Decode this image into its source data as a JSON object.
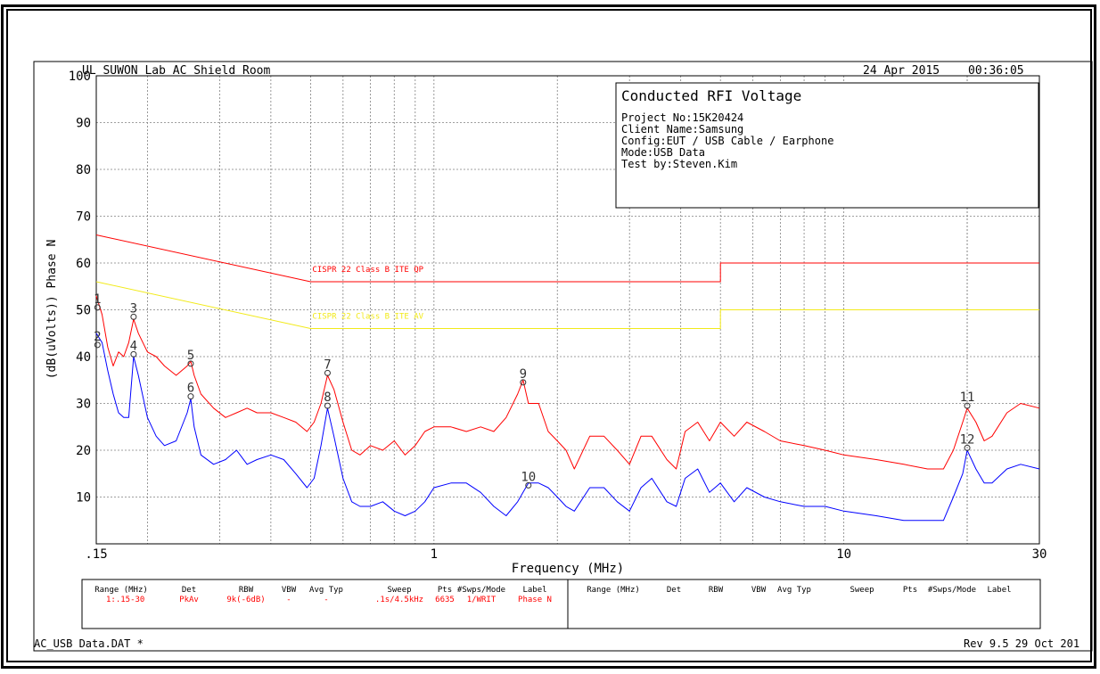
{
  "header": {
    "lab": "UL SUWON Lab AC Shield Room",
    "date": "24 Apr 2015",
    "time": "00:36:05"
  },
  "info_box": {
    "title": "Conducted RFI Voltage",
    "lines": [
      "Project No:15K20424",
      "Client Name:Samsung",
      "Config:EUT / USB Cable / Earphone",
      "Mode:USB Data",
      "Test by:Steven.Kim"
    ]
  },
  "footer": {
    "file": "AC_USB Data.DAT *",
    "revision": "Rev 9.5 29 Oct 201"
  },
  "settings_table": {
    "headers": [
      "Range (MHz)",
      "Det",
      "RBW",
      "VBW",
      "Avg Typ",
      "Sweep",
      "Pts",
      "#Swps/Mode",
      "Label"
    ],
    "row": [
      "1:.15-30",
      "PkAv",
      "9k(-6dB)",
      "-",
      "-",
      ".1s/4.5kHz",
      "6635",
      "1/WRIT",
      "Phase N"
    ]
  },
  "colors": {
    "peak_trace": "#ff0000",
    "average_trace": "#0000ff",
    "qp_limit": "#ff0000",
    "av_limit": "#f2ea1a",
    "grid": "#808080"
  },
  "chart_data": {
    "type": "line",
    "xlabel": "Frequency (MHz)",
    "ylabel": "(dB(uVolts)) Phase N",
    "x_scale": "log",
    "xlim": [
      0.15,
      30
    ],
    "ylim": [
      0,
      100
    ],
    "x_tick_labels": [
      ".15",
      "1",
      "10",
      "30"
    ],
    "y_tick_labels": [
      "10",
      "20",
      "30",
      "40",
      "50",
      "60",
      "70",
      "80",
      "90",
      "100"
    ],
    "grid": true,
    "limit_lines": [
      {
        "label": "CISPR 22 Class B ITE QP",
        "points": [
          [
            0.15,
            66
          ],
          [
            0.5,
            56
          ],
          [
            5,
            56
          ],
          [
            5,
            60
          ],
          [
            30,
            60
          ]
        ]
      },
      {
        "label": "CISPR 22 Class B ITE AV",
        "points": [
          [
            0.15,
            56
          ],
          [
            0.5,
            46
          ],
          [
            5,
            46
          ],
          [
            5,
            50
          ],
          [
            30,
            50
          ]
        ]
      }
    ],
    "series": [
      {
        "points": [
          [
            0.15,
            53
          ],
          [
            0.155,
            49
          ],
          [
            0.16,
            42
          ],
          [
            0.165,
            38
          ],
          [
            0.17,
            41
          ],
          [
            0.175,
            40
          ],
          [
            0.18,
            43
          ],
          [
            0.185,
            48
          ],
          [
            0.19,
            45
          ],
          [
            0.2,
            41
          ],
          [
            0.21,
            40
          ],
          [
            0.22,
            38
          ],
          [
            0.235,
            36
          ],
          [
            0.25,
            38
          ],
          [
            0.255,
            39
          ],
          [
            0.26,
            36
          ],
          [
            0.27,
            32
          ],
          [
            0.29,
            29
          ],
          [
            0.31,
            27
          ],
          [
            0.33,
            28
          ],
          [
            0.35,
            29
          ],
          [
            0.37,
            28
          ],
          [
            0.4,
            28
          ],
          [
            0.43,
            27
          ],
          [
            0.46,
            26
          ],
          [
            0.49,
            24
          ],
          [
            0.51,
            26
          ],
          [
            0.53,
            30
          ],
          [
            0.55,
            36
          ],
          [
            0.57,
            33
          ],
          [
            0.6,
            26
          ],
          [
            0.63,
            20
          ],
          [
            0.66,
            19
          ],
          [
            0.7,
            21
          ],
          [
            0.75,
            20
          ],
          [
            0.8,
            22
          ],
          [
            0.85,
            19
          ],
          [
            0.9,
            21
          ],
          [
            0.95,
            24
          ],
          [
            1.0,
            25
          ],
          [
            1.1,
            25
          ],
          [
            1.2,
            24
          ],
          [
            1.3,
            25
          ],
          [
            1.4,
            24
          ],
          [
            1.5,
            27
          ],
          [
            1.6,
            32
          ],
          [
            1.65,
            35
          ],
          [
            1.7,
            30
          ],
          [
            1.8,
            30
          ],
          [
            1.9,
            24
          ],
          [
            2.0,
            22
          ],
          [
            2.1,
            20
          ],
          [
            2.2,
            16
          ],
          [
            2.4,
            23
          ],
          [
            2.6,
            23
          ],
          [
            2.8,
            20
          ],
          [
            3.0,
            17
          ],
          [
            3.2,
            23
          ],
          [
            3.4,
            23
          ],
          [
            3.7,
            18
          ],
          [
            3.9,
            16
          ],
          [
            4.1,
            24
          ],
          [
            4.4,
            26
          ],
          [
            4.7,
            22
          ],
          [
            5.0,
            26
          ],
          [
            5.4,
            23
          ],
          [
            5.8,
            26
          ],
          [
            6.4,
            24
          ],
          [
            7.0,
            22
          ],
          [
            8.0,
            21
          ],
          [
            9.0,
            20
          ],
          [
            10.0,
            19
          ],
          [
            12.0,
            18
          ],
          [
            14.0,
            17
          ],
          [
            16.0,
            16
          ],
          [
            17.5,
            16
          ],
          [
            18.5,
            20
          ],
          [
            19.5,
            26
          ],
          [
            20.0,
            29
          ],
          [
            21.0,
            26
          ],
          [
            22.0,
            22
          ],
          [
            23.0,
            23
          ],
          [
            25.0,
            28
          ],
          [
            27.0,
            30
          ],
          [
            30.0,
            29
          ]
        ]
      },
      {
        "points": [
          [
            0.15,
            45
          ],
          [
            0.155,
            43
          ],
          [
            0.16,
            37
          ],
          [
            0.165,
            32
          ],
          [
            0.17,
            28
          ],
          [
            0.175,
            27
          ],
          [
            0.18,
            27
          ],
          [
            0.185,
            40
          ],
          [
            0.19,
            36
          ],
          [
            0.2,
            27
          ],
          [
            0.21,
            23
          ],
          [
            0.22,
            21
          ],
          [
            0.235,
            22
          ],
          [
            0.25,
            28
          ],
          [
            0.255,
            31
          ],
          [
            0.26,
            25
          ],
          [
            0.27,
            19
          ],
          [
            0.29,
            17
          ],
          [
            0.31,
            18
          ],
          [
            0.33,
            20
          ],
          [
            0.35,
            17
          ],
          [
            0.37,
            18
          ],
          [
            0.4,
            19
          ],
          [
            0.43,
            18
          ],
          [
            0.46,
            15
          ],
          [
            0.49,
            12
          ],
          [
            0.51,
            14
          ],
          [
            0.53,
            21
          ],
          [
            0.55,
            29
          ],
          [
            0.57,
            23
          ],
          [
            0.6,
            14
          ],
          [
            0.63,
            9
          ],
          [
            0.66,
            8
          ],
          [
            0.7,
            8
          ],
          [
            0.75,
            9
          ],
          [
            0.8,
            7
          ],
          [
            0.85,
            6
          ],
          [
            0.9,
            7
          ],
          [
            0.95,
            9
          ],
          [
            1.0,
            12
          ],
          [
            1.1,
            13
          ],
          [
            1.2,
            13
          ],
          [
            1.3,
            11
          ],
          [
            1.4,
            8
          ],
          [
            1.5,
            6
          ],
          [
            1.6,
            9
          ],
          [
            1.7,
            13
          ],
          [
            1.8,
            13
          ],
          [
            1.9,
            12
          ],
          [
            2.0,
            10
          ],
          [
            2.1,
            8
          ],
          [
            2.2,
            7
          ],
          [
            2.4,
            12
          ],
          [
            2.6,
            12
          ],
          [
            2.8,
            9
          ],
          [
            3.0,
            7
          ],
          [
            3.2,
            12
          ],
          [
            3.4,
            14
          ],
          [
            3.7,
            9
          ],
          [
            3.9,
            8
          ],
          [
            4.1,
            14
          ],
          [
            4.4,
            16
          ],
          [
            4.7,
            11
          ],
          [
            5.0,
            13
          ],
          [
            5.4,
            9
          ],
          [
            5.8,
            12
          ],
          [
            6.4,
            10
          ],
          [
            7.0,
            9
          ],
          [
            8.0,
            8
          ],
          [
            9.0,
            8
          ],
          [
            10.0,
            7
          ],
          [
            12.0,
            6
          ],
          [
            14.0,
            5
          ],
          [
            16.0,
            5
          ],
          [
            17.5,
            5
          ],
          [
            18.5,
            10
          ],
          [
            19.5,
            15
          ],
          [
            20.0,
            20
          ],
          [
            21.0,
            16
          ],
          [
            22.0,
            13
          ],
          [
            23.0,
            13
          ],
          [
            25.0,
            16
          ],
          [
            27.0,
            17
          ],
          [
            30.0,
            16
          ]
        ]
      }
    ],
    "markers": [
      {
        "label": "1",
        "x": 0.151,
        "y": 50.5
      },
      {
        "label": "2",
        "x": 0.151,
        "y": 42.5
      },
      {
        "label": "3",
        "x": 0.185,
        "y": 48.5
      },
      {
        "label": "4",
        "x": 0.185,
        "y": 40.5
      },
      {
        "label": "5",
        "x": 0.255,
        "y": 38.5
      },
      {
        "label": "6",
        "x": 0.255,
        "y": 31.5
      },
      {
        "label": "7",
        "x": 0.55,
        "y": 36.5
      },
      {
        "label": "8",
        "x": 0.55,
        "y": 29.5
      },
      {
        "label": "9",
        "x": 1.65,
        "y": 34.5
      },
      {
        "label": "10",
        "x": 1.7,
        "y": 12.5
      },
      {
        "label": "11",
        "x": 20.0,
        "y": 29.5
      },
      {
        "label": "12",
        "x": 20.0,
        "y": 20.5
      }
    ]
  }
}
